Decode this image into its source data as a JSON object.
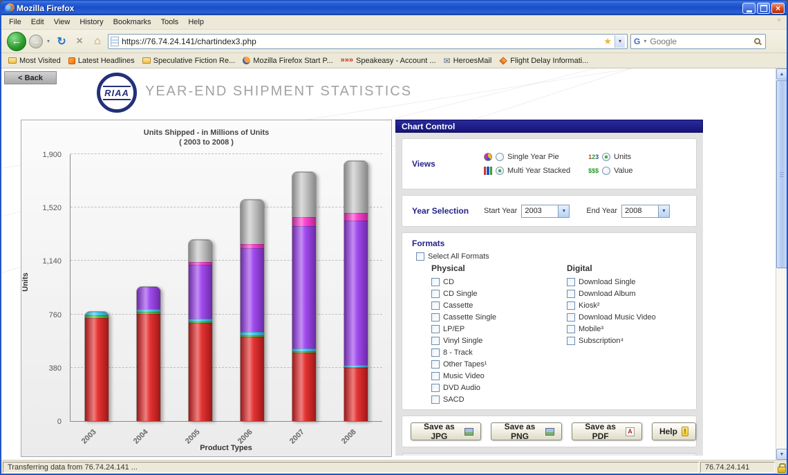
{
  "window": {
    "title": "Mozilla Firefox",
    "status_left": "Transferring data from 76.74.24.141 ...",
    "status_right": "76.74.24.141"
  },
  "icons": {
    "back_arrow": "←",
    "forward_arrow": "→",
    "dropdown_arrow": "▾",
    "reload": "↻",
    "stop": "×",
    "home": "⌂",
    "star": "★",
    "google_g": "G",
    "close": "×",
    "scroll_up": "▲",
    "scroll_down": "▼",
    "select_arrow": "▼",
    "throbber": "*"
  },
  "menubar": {
    "items": [
      "File",
      "Edit",
      "View",
      "History",
      "Bookmarks",
      "Tools",
      "Help"
    ]
  },
  "navbar": {
    "url": "https://76.74.24.141/chartindex3.php",
    "search_placeholder": "Google"
  },
  "bookmarks": {
    "items": [
      {
        "label": "Most Visited",
        "icon": "folder",
        "glyph": ""
      },
      {
        "label": "Latest Headlines",
        "icon": "rss",
        "glyph": ""
      },
      {
        "label": "Speculative Fiction Re...",
        "icon": "folder",
        "glyph": ""
      },
      {
        "label": "Mozilla Firefox Start P...",
        "icon": "firefox",
        "glyph": ""
      },
      {
        "label": "Speakeasy - Account ...",
        "icon": "chevrons",
        "glyph": "»»»"
      },
      {
        "label": "HeroesMail",
        "icon": "mail",
        "glyph": "✉"
      },
      {
        "label": "Flight Delay Informati...",
        "icon": "diamond",
        "glyph": ""
      }
    ]
  },
  "page": {
    "back_button": "< Back",
    "logo_text": "RIAA",
    "heading": "YEAR-END SHIPMENT STATISTICS",
    "chart_control": {
      "title": "Chart Control",
      "views": {
        "label": "Views",
        "options": [
          {
            "label": "Single Year Pie",
            "icon": "pie",
            "glyph": "",
            "selected": false
          },
          {
            "label": "Multi Year Stacked",
            "icon": "bars",
            "glyph": "",
            "selected": true
          },
          {
            "label": "Units",
            "icon": "numbers",
            "glyph": "123",
            "selected": true
          },
          {
            "label": "Value",
            "icon": "money",
            "glyph": "$$$",
            "selected": false
          }
        ]
      },
      "year_selection": {
        "label": "Year Selection",
        "start_label": "Start Year",
        "start_value": "2003",
        "end_label": "End Year",
        "end_value": "2008"
      },
      "formats": {
        "label": "Formats",
        "select_all": "Select All Formats",
        "physical_header": "Physical",
        "digital_header": "Digital",
        "physical": [
          "CD",
          "CD Single",
          "Cassette",
          "Cassette Single",
          "LP/EP",
          "Vinyl Single",
          "8 - Track",
          "Other Tapes¹",
          "Music Video",
          "DVD Audio",
          "SACD"
        ],
        "digital": [
          "Download Single",
          "Download Album",
          "Kiosk²",
          "Download Music Video",
          "Mobile³",
          "Subscription⁴"
        ]
      },
      "buttons": [
        {
          "label": "Save as JPG",
          "icon": "image"
        },
        {
          "label": "Save as PNG",
          "icon": "image"
        },
        {
          "label": "Save as PDF",
          "icon": "pdf"
        },
        {
          "label": "Help",
          "icon": "help"
        }
      ]
    }
  },
  "chart_data": {
    "type": "bar",
    "stacked": true,
    "title": "Units Shipped - in Millions of Units",
    "subtitle": "( 2003 to 2008 )",
    "xlabel": "Product Types",
    "ylabel": "Units",
    "ylim": [
      0,
      1900
    ],
    "yticks": [
      0,
      380,
      760,
      1140,
      1520,
      1900
    ],
    "ytick_labels": [
      "0",
      "380",
      "760",
      "1,140",
      "1,520",
      "1,900"
    ],
    "grid": true,
    "legend": "none",
    "categories": [
      "2003",
      "2004",
      "2005",
      "2006",
      "2007",
      "2008"
    ],
    "series": [
      {
        "name": "segment-red",
        "color": "#e32222",
        "values": [
          740,
          765,
          700,
          600,
          490,
          380
        ]
      },
      {
        "name": "segment-green",
        "color": "#3ec53e",
        "values": [
          20,
          15,
          12,
          10,
          8,
          5
        ]
      },
      {
        "name": "segment-cyan",
        "color": "#3ac8ee",
        "values": [
          25,
          20,
          18,
          25,
          18,
          15
        ]
      },
      {
        "name": "segment-purple",
        "color": "#9a3cee",
        "values": [
          0,
          160,
          385,
          600,
          875,
          1030
        ]
      },
      {
        "name": "segment-magenta",
        "color": "#ff33cc",
        "values": [
          0,
          0,
          20,
          30,
          65,
          55
        ]
      },
      {
        "name": "segment-silver",
        "color": "#c2c2c2",
        "values": [
          0,
          0,
          160,
          315,
          320,
          370
        ]
      }
    ]
  }
}
